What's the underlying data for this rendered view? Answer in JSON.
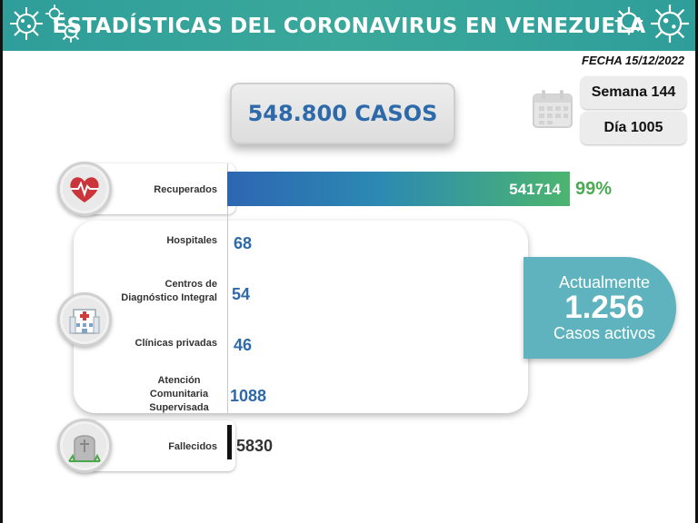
{
  "header": {
    "title": "ESTADÍSTICAS DEL CORONAVIRUS EN VENEZUELA"
  },
  "date": "FECHA 15/12/2022",
  "summary": {
    "total_cases": "548.800 CASOS",
    "week": "Semana 144",
    "day": "Día 1005"
  },
  "active": {
    "line1": "Actualmente",
    "number": "1.256",
    "line3": "Casos activos"
  },
  "rows": {
    "recovered": {
      "label": "Recuperados",
      "value": "541714",
      "pct": "99%"
    },
    "hospitals": {
      "label": "Hospitales",
      "value": "68"
    },
    "cdi": {
      "label_line1": "Centros de",
      "label_line2": "Diagnóstico Integral",
      "value": "54"
    },
    "clinics": {
      "label": "Clínicas privadas",
      "value": "46"
    },
    "community": {
      "label_line1": "Atención",
      "label_line2": "Comunitaria",
      "label_line3": "Supervisada",
      "value": "1088"
    },
    "deceased": {
      "label": "Fallecidos",
      "value": "5830"
    }
  },
  "colors": {
    "header": "#2f9e9a",
    "total_text": "#2e6aa9",
    "recovered_start": "#2d66b2",
    "recovered_end": "#4cb56e",
    "pct": "#4caa55",
    "active_box": "#5eb3be",
    "value_text": "#2e6aa9"
  },
  "icons": [
    "virus-icon",
    "heart-pulse-icon",
    "hospital-icon",
    "tombstone-icon",
    "calendar-icon"
  ],
  "chart_data": {
    "type": "bar",
    "categories": [
      "Recuperados",
      "Hospitales",
      "Centros de Diagnóstico Integral",
      "Clínicas privadas",
      "Atención Comunitaria Supervisada",
      "Fallecidos"
    ],
    "values": [
      541714,
      68,
      54,
      46,
      1088,
      5830
    ],
    "title": "ESTADÍSTICAS DEL CORONAVIRUS EN VENEZUELA",
    "orientation": "horizontal"
  }
}
